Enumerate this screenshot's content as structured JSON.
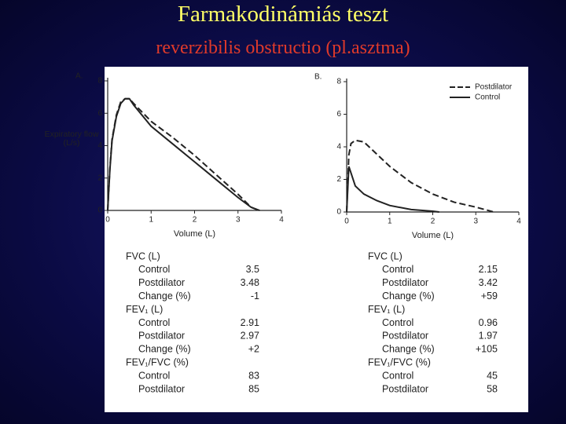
{
  "title": "Farmakodinámiás teszt",
  "subtitle": "reverzibilis obstructio (pl.asztma)",
  "chart_data": [
    {
      "type": "line",
      "panel_label": "A.",
      "ylabel": "Expiratory flow (L/s)",
      "xlabel": "Volume (L)",
      "xlim": [
        0,
        4
      ],
      "ylim": [
        0,
        8
      ],
      "xticks": [
        0,
        1,
        2,
        3,
        4
      ],
      "yticks": [
        0,
        2,
        4,
        6,
        8
      ],
      "series": [
        {
          "color": "#222",
          "style": "solid",
          "x": [
            0,
            0.05,
            0.1,
            0.2,
            0.3,
            0.4,
            0.5,
            0.6,
            1,
            1.5,
            2,
            2.5,
            3,
            3.3,
            3.5
          ],
          "values": [
            0,
            2.5,
            4.3,
            5.8,
            6.6,
            6.9,
            6.9,
            6.5,
            5.2,
            4.1,
            3.0,
            1.9,
            0.8,
            0.2,
            0
          ]
        },
        {
          "color": "#222",
          "style": "dashed",
          "x": [
            0,
            0.05,
            0.1,
            0.2,
            0.3,
            0.4,
            0.5,
            0.6,
            1,
            1.5,
            2,
            2.5,
            3,
            3.3,
            3.48
          ],
          "values": [
            0,
            2.6,
            4.4,
            5.9,
            6.7,
            6.9,
            6.9,
            6.6,
            5.5,
            4.5,
            3.4,
            2.2,
            1.0,
            0.2,
            0
          ]
        }
      ]
    },
    {
      "type": "line",
      "panel_label": "B.",
      "xlabel": "Volume (L)",
      "xlim": [
        0,
        4
      ],
      "ylim": [
        0,
        8
      ],
      "xticks": [
        0,
        1,
        2,
        3,
        4
      ],
      "yticks": [
        0,
        2,
        4,
        6,
        8
      ],
      "legend": "upper right",
      "series": [
        {
          "name": "Postdilator",
          "color": "#222",
          "style": "dashed",
          "x": [
            0,
            0.05,
            0.1,
            0.2,
            0.4,
            0.6,
            1,
            1.5,
            2,
            2.5,
            3,
            3.42
          ],
          "values": [
            0,
            3.5,
            4.2,
            4.4,
            4.3,
            3.8,
            2.8,
            1.8,
            1.1,
            0.6,
            0.3,
            0
          ]
        },
        {
          "name": "Control",
          "color": "#222",
          "style": "solid",
          "x": [
            0,
            0.05,
            0.1,
            0.2,
            0.4,
            0.7,
            1,
            1.5,
            2,
            2.15
          ],
          "values": [
            0,
            2.8,
            2.4,
            1.6,
            1.1,
            0.7,
            0.4,
            0.15,
            0.05,
            0
          ]
        }
      ]
    }
  ],
  "tables": [
    {
      "rows": [
        [
          "FVC (L)"
        ],
        [
          "Control",
          "3.5"
        ],
        [
          "Postdilator",
          "3.48"
        ],
        [
          "Change (%)",
          "-1"
        ],
        [
          "FEV₁ (L)"
        ],
        [
          "Control",
          "2.91"
        ],
        [
          "Postdilator",
          "2.97"
        ],
        [
          "Change (%)",
          "+2"
        ],
        [
          "FEV₁/FVC (%)"
        ],
        [
          "Control",
          "83"
        ],
        [
          "Postdilator",
          "85"
        ]
      ]
    },
    {
      "rows": [
        [
          "FVC (L)"
        ],
        [
          "Control",
          "2.15"
        ],
        [
          "Postdilator",
          "3.42"
        ],
        [
          "Change (%)",
          "+59"
        ],
        [
          "FEV₁ (L)"
        ],
        [
          "Control",
          "0.96"
        ],
        [
          "Postdilator",
          "1.97"
        ],
        [
          "Change (%)",
          "+105"
        ],
        [
          "FEV₁/FVC (%)"
        ],
        [
          "Control",
          "45"
        ],
        [
          "Postdilator",
          "58"
        ]
      ]
    }
  ]
}
